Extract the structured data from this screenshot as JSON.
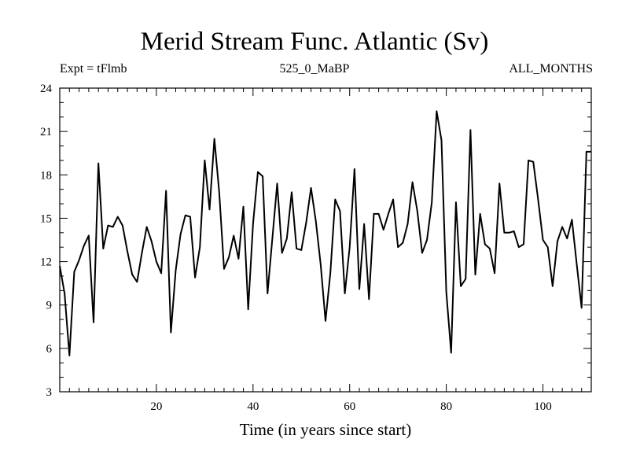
{
  "chart_data": {
    "type": "line",
    "title": "Merid Stream Func. Atlantic (Sv)",
    "subtitle_left": "Expt = tFlmb",
    "subtitle_center": "525_0_MaBP",
    "subtitle_right": "ALL_MONTHS",
    "xlabel": "Time (in years since start)",
    "ylabel": "",
    "xlim": [
      0,
      110
    ],
    "ylim": [
      3,
      24
    ],
    "xticks": [
      20,
      40,
      60,
      80,
      100
    ],
    "yticks": [
      3,
      6,
      9,
      12,
      15,
      18,
      21,
      24
    ],
    "grid": false,
    "series": [
      {
        "name": "Merid Stream Func. Atlantic",
        "color": "#000000",
        "x": [
          0,
          1,
          2,
          3,
          4,
          5,
          6,
          7,
          8,
          9,
          10,
          11,
          12,
          13,
          14,
          15,
          16,
          17,
          18,
          19,
          20,
          21,
          22,
          23,
          24,
          25,
          26,
          27,
          28,
          29,
          30,
          31,
          32,
          33,
          34,
          35,
          36,
          37,
          38,
          39,
          40,
          41,
          42,
          43,
          44,
          45,
          46,
          47,
          48,
          49,
          50,
          51,
          52,
          53,
          54,
          55,
          56,
          57,
          58,
          59,
          60,
          61,
          62,
          63,
          64,
          65,
          66,
          67,
          68,
          69,
          70,
          71,
          72,
          73,
          74,
          75,
          76,
          77,
          78,
          79,
          80,
          81,
          82,
          83,
          84,
          85,
          86,
          87,
          88,
          89,
          90,
          91,
          92,
          93,
          94,
          95,
          96,
          97,
          98,
          99,
          100,
          101,
          102,
          103,
          104,
          105,
          106,
          107,
          108,
          109,
          110
        ],
        "y": [
          11.7,
          9.8,
          5.5,
          11.3,
          12.1,
          13.1,
          13.8,
          7.8,
          18.8,
          12.9,
          14.5,
          14.4,
          15.1,
          14.5,
          12.7,
          11.1,
          10.6,
          12.6,
          14.4,
          13.4,
          12.0,
          11.2,
          16.9,
          7.1,
          11.4,
          13.9,
          15.2,
          15.1,
          10.9,
          13.0,
          19.0,
          15.6,
          20.5,
          16.8,
          11.5,
          12.3,
          13.8,
          12.2,
          15.8,
          8.7,
          14.6,
          18.2,
          17.9,
          9.8,
          13.6,
          17.4,
          12.6,
          13.6,
          16.8,
          12.9,
          12.8,
          14.7,
          17.1,
          14.8,
          11.8,
          7.9,
          11.2,
          16.3,
          15.5,
          9.8,
          13.0,
          18.4,
          10.1,
          14.6,
          9.4,
          15.3,
          15.3,
          14.2,
          15.3,
          16.3,
          13.0,
          13.3,
          14.6,
          17.5,
          15.5,
          12.6,
          13.5,
          16.1,
          22.4,
          20.4,
          9.9,
          5.7,
          16.1,
          10.3,
          10.8,
          21.1,
          11.1,
          15.3,
          13.2,
          12.9,
          11.2,
          17.4,
          14.0,
          14.0,
          14.1,
          13.0,
          13.2,
          19.0,
          18.9,
          16.3,
          13.5,
          13.0,
          10.3,
          13.4,
          14.4,
          13.6,
          14.9,
          11.8,
          8.8,
          19.6,
          19.6
        ]
      }
    ]
  }
}
